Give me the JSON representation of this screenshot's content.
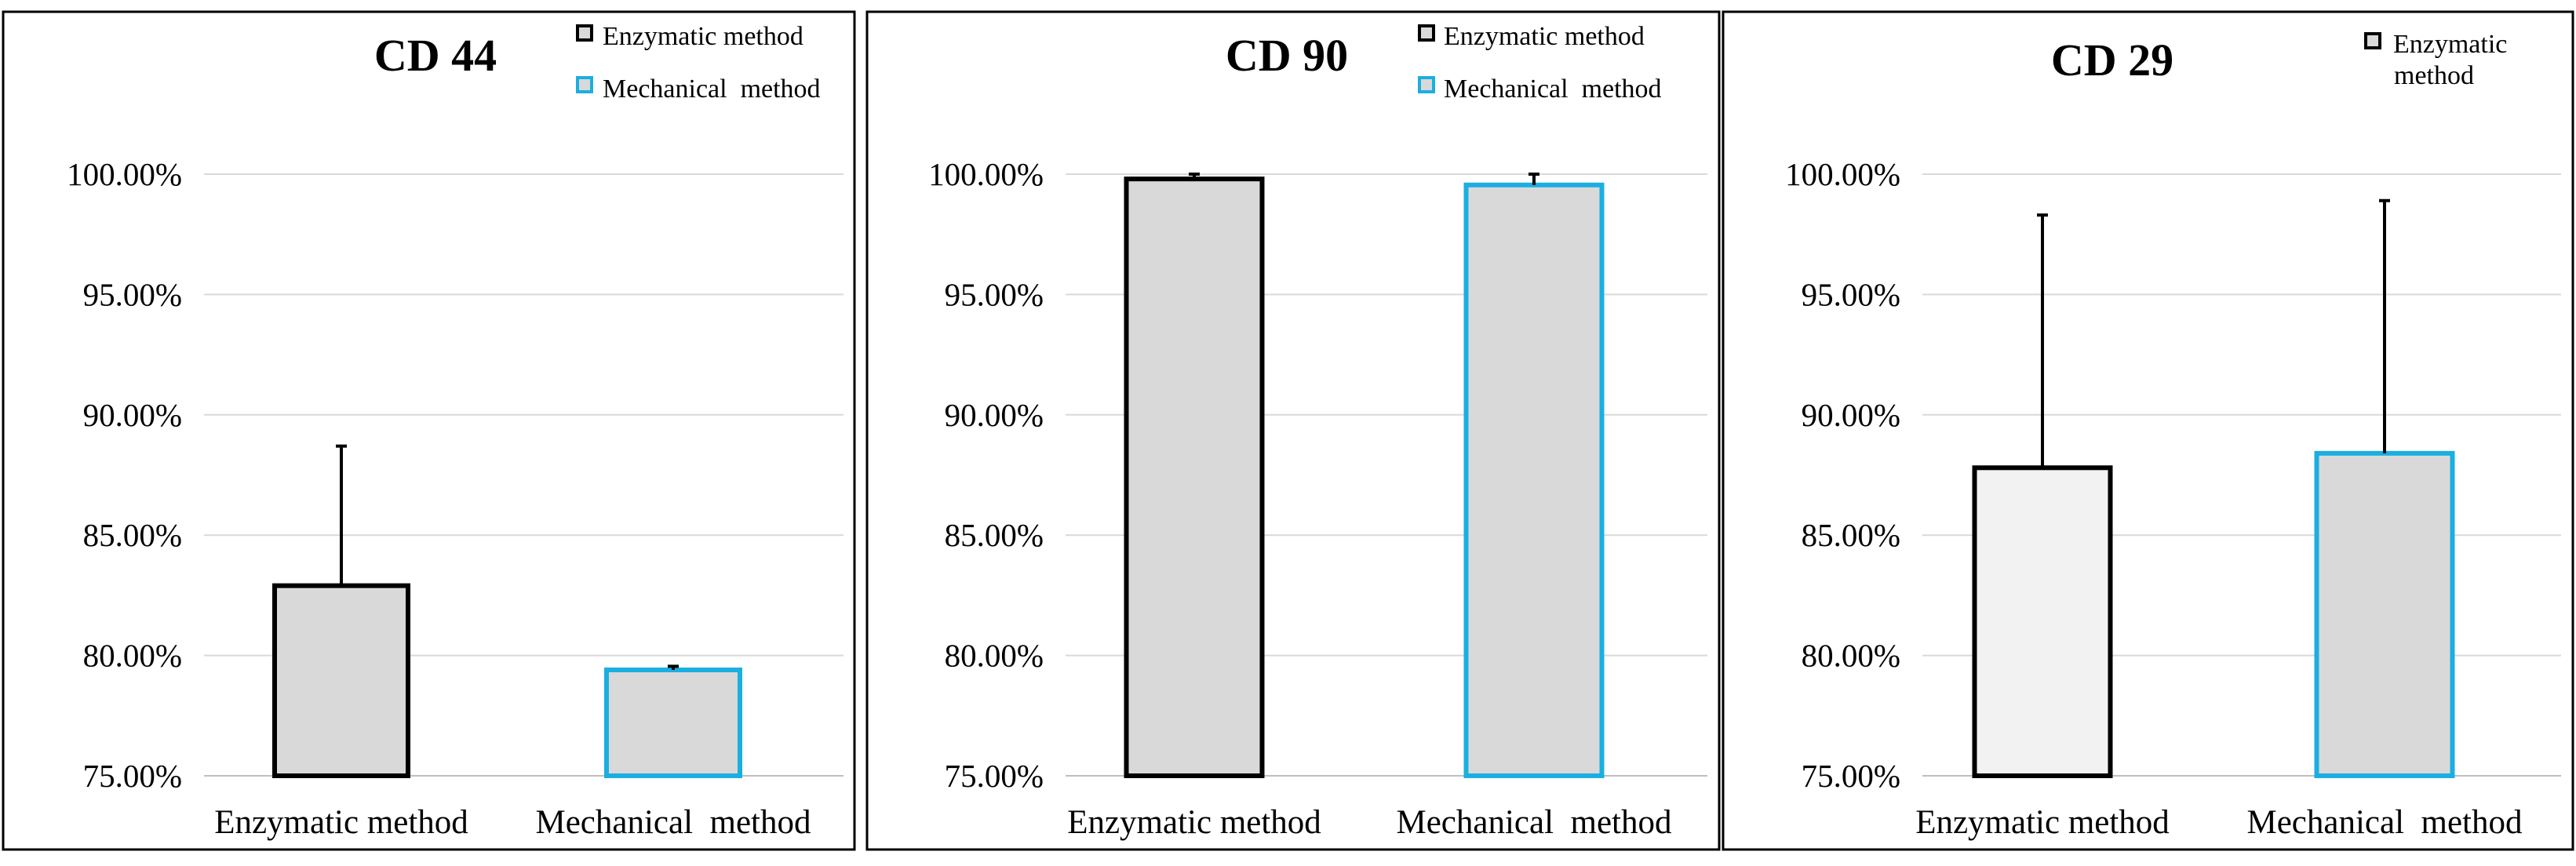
{
  "chart_data": [
    {
      "type": "bar",
      "title": "CD 44",
      "categories": [
        "Enzymatic method",
        "Mechanical  method"
      ],
      "values": [
        82.9,
        79.4
      ],
      "errors": [
        5.8,
        0.15
      ],
      "ylim": [
        75,
        100
      ],
      "yticks": [
        "75.00%",
        "80.00%",
        "85.00%",
        "90.00%",
        "95.00%",
        "100.00%"
      ],
      "legend": {
        "placement": "top-right",
        "entries": [
          {
            "label": "Enzymatic method",
            "color": "#000000"
          },
          {
            "label": "Mechanical  method",
            "color": "#1aafe0"
          }
        ]
      },
      "grid": true,
      "xlabel": "",
      "ylabel": ""
    },
    {
      "type": "bar",
      "title": "CD 90",
      "categories": [
        "Enzymatic method",
        "Mechanical  method"
      ],
      "values": [
        99.8,
        99.55
      ],
      "errors": [
        0.2,
        0.45
      ],
      "ylim": [
        75,
        100
      ],
      "yticks": [
        "75.00%",
        "80.00%",
        "85.00%",
        "90.00%",
        "95.00%",
        "100.00%"
      ],
      "legend": {
        "placement": "top-right",
        "entries": [
          {
            "label": "Enzymatic method",
            "color": "#000000"
          },
          {
            "label": "Mechanical  method",
            "color": "#1aafe0"
          }
        ]
      },
      "grid": true,
      "xlabel": "",
      "ylabel": ""
    },
    {
      "type": "bar",
      "title": "CD 29",
      "categories": [
        "Enzymatic method",
        "Mechanical  method"
      ],
      "values": [
        87.8,
        88.4
      ],
      "errors": [
        10.5,
        10.5
      ],
      "ylim": [
        75,
        100
      ],
      "yticks": [
        "75.00%",
        "80.00%",
        "85.00%",
        "90.00%",
        "95.00%",
        "100.00%"
      ],
      "legend": {
        "placement": "top-right",
        "entries": [
          {
            "label": "Enzymatic\nmethod",
            "color": "#000000"
          }
        ]
      },
      "grid": true,
      "xlabel": "",
      "ylabel": ""
    }
  ],
  "colors": {
    "bar_fill": "#d9d9d9",
    "bar_fill_light": "#f2f2f2",
    "enzymatic_border": "#000000",
    "mechanical_border": "#1aafe0",
    "grid": "#d9d9d9",
    "panel_border": "#000000"
  }
}
